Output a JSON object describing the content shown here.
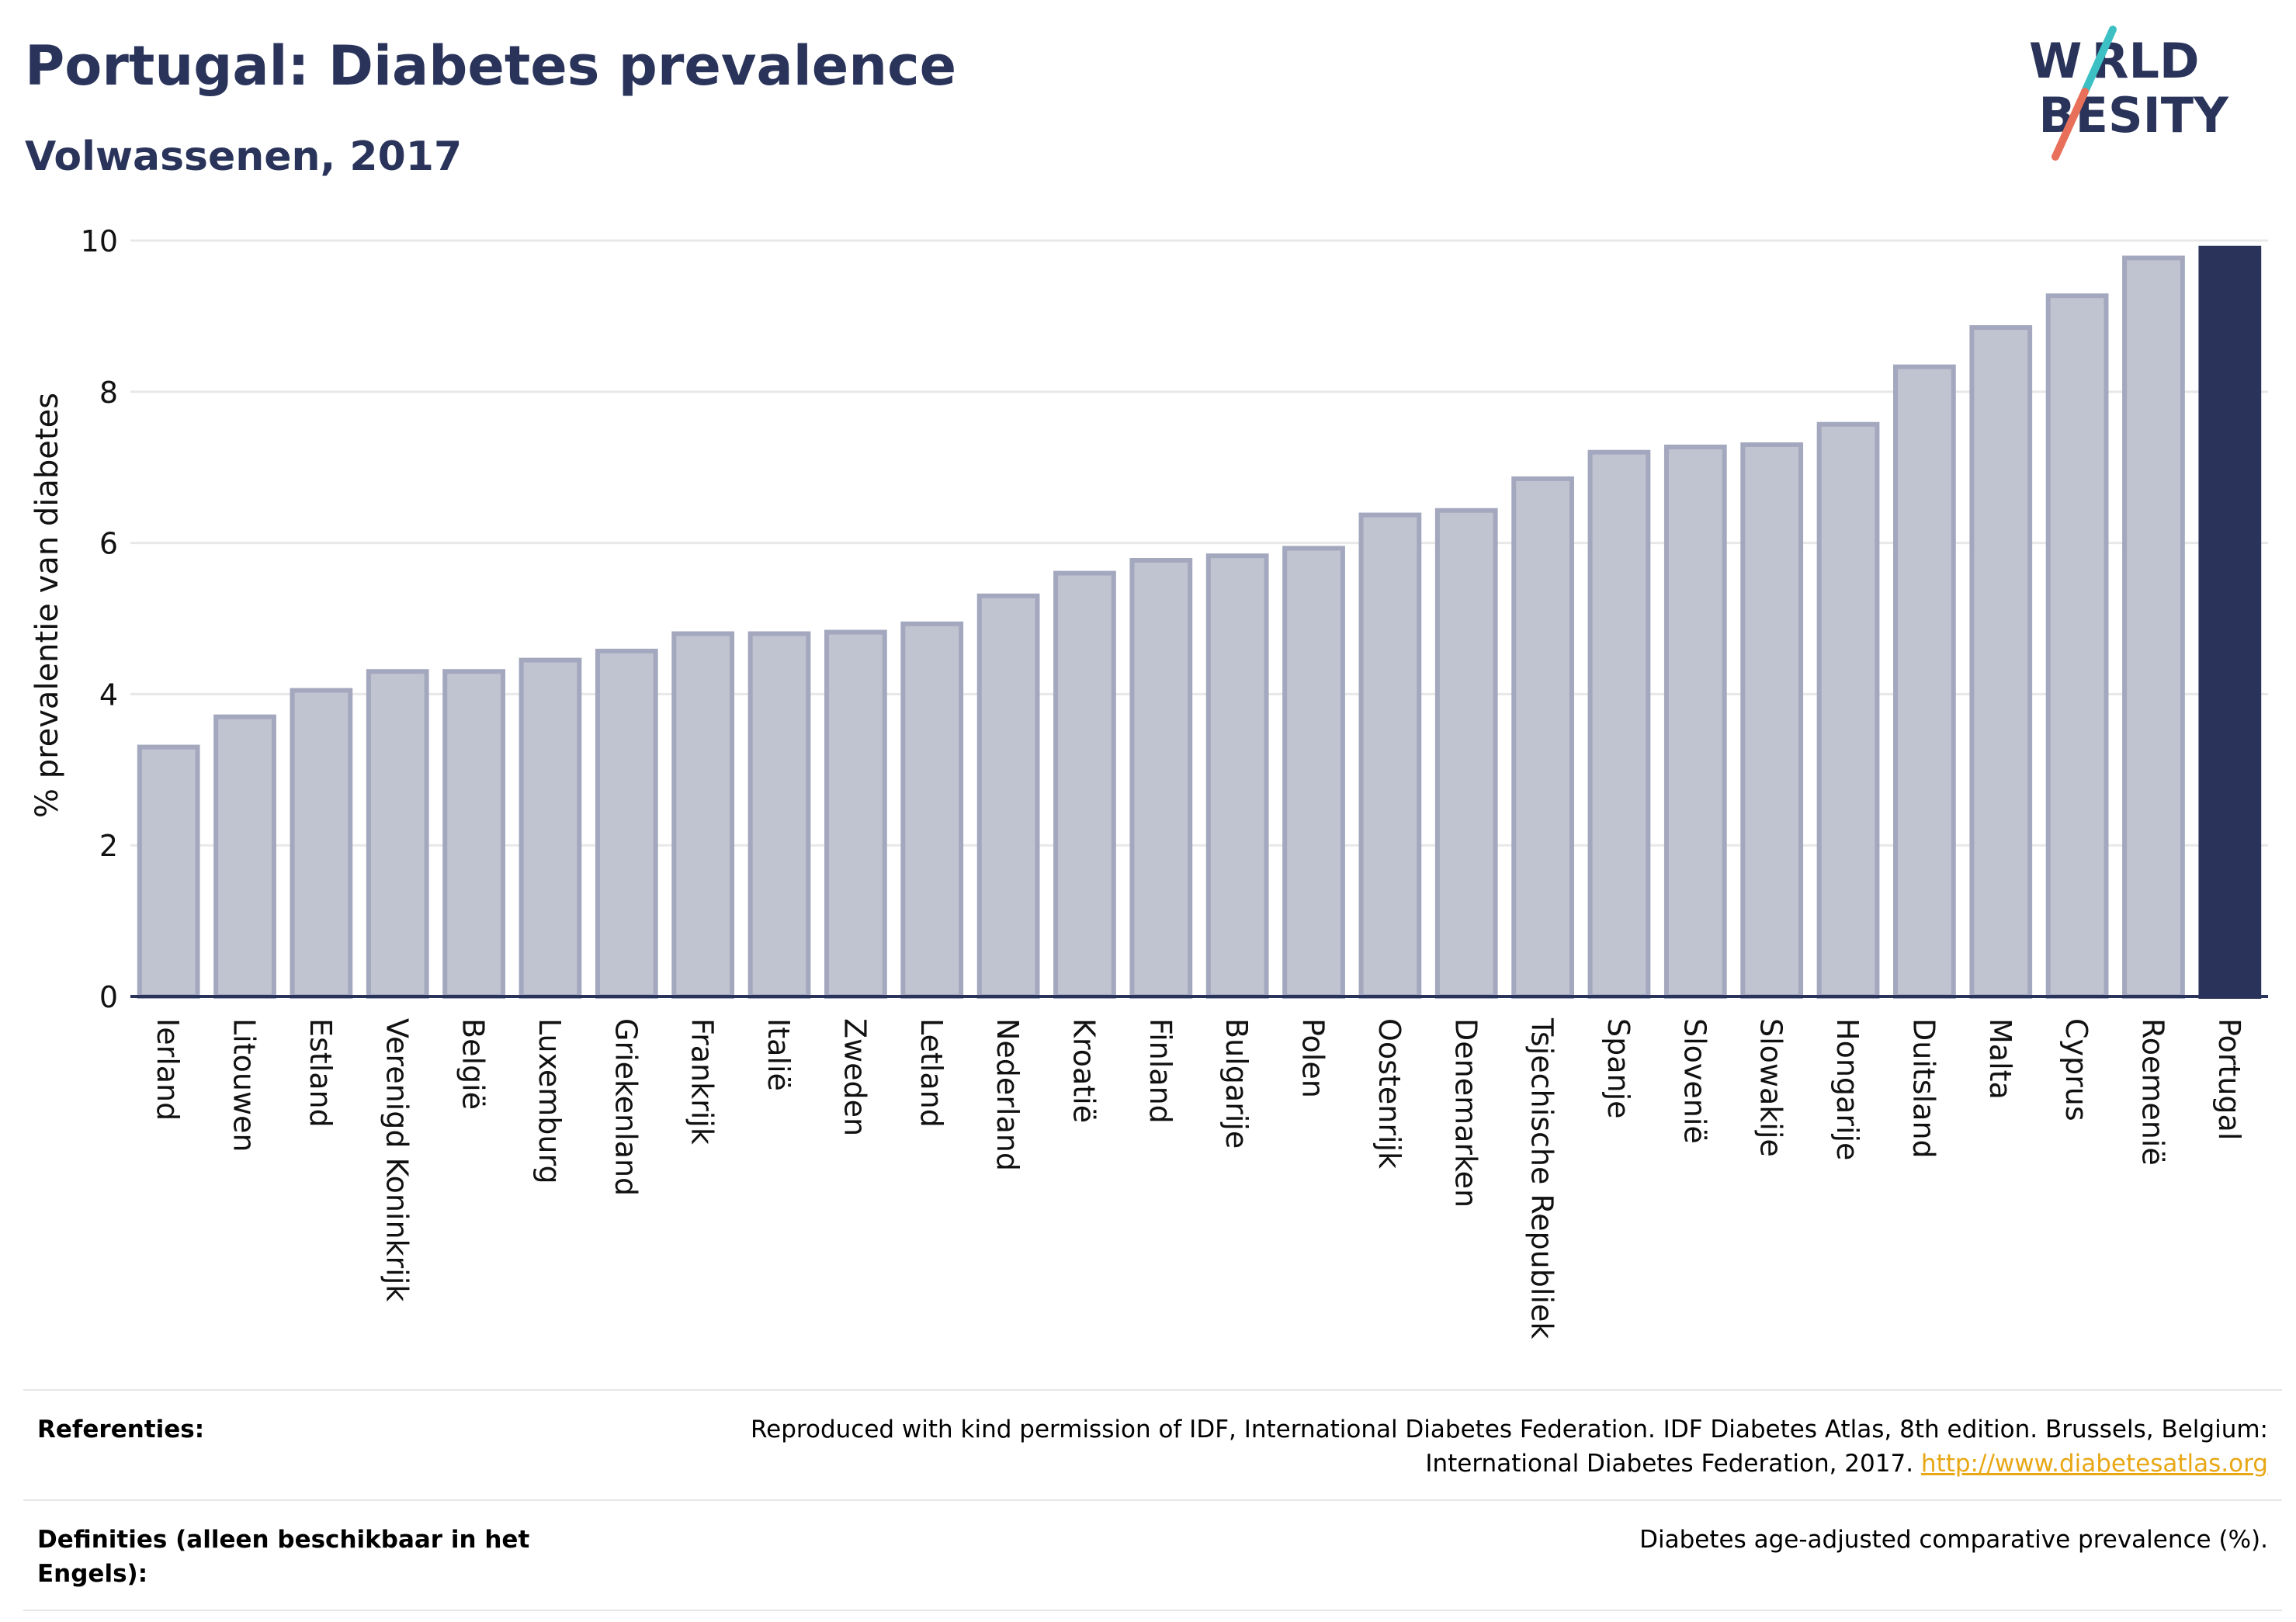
{
  "header": {
    "title": "Portugal: Diabetes prevalence",
    "subtitle": "Volwassenen, 2017"
  },
  "logo": {
    "line1": "W RLD",
    "line2": " BESITY",
    "colors": {
      "navy": "#2a345b",
      "teal": "#3cc0c4",
      "coral": "#e8705a"
    }
  },
  "chart_data": {
    "type": "bar",
    "ylabel": "% prevalentie van diabetes",
    "ylim": [
      0,
      10
    ],
    "yticks": [
      0,
      2,
      4,
      6,
      8,
      10
    ],
    "grid": true,
    "categories": [
      "Ierland",
      "Litouwen",
      "Estland",
      "Verenigd Koninkrijk",
      "België",
      "Luxemburg",
      "Griekenland",
      "Frankrijk",
      "Italië",
      "Zweden",
      "Letland",
      "Nederland",
      "Kroatië",
      "Finland",
      "Bulgarije",
      "Polen",
      "Oostenrijk",
      "Denemarken",
      "Tsjechische Republiek",
      "Spanje",
      "Slovenië",
      "Slowakije",
      "Hongarije",
      "Duitsland",
      "Malta",
      "Cyprus",
      "Roemenië",
      "Portugal"
    ],
    "values": [
      3.3,
      3.7,
      4.05,
      4.3,
      4.3,
      4.45,
      4.57,
      4.8,
      4.8,
      4.82,
      4.93,
      5.3,
      5.6,
      5.77,
      5.83,
      5.93,
      6.37,
      6.43,
      6.85,
      7.2,
      7.27,
      7.3,
      7.57,
      8.33,
      8.85,
      9.27,
      9.77,
      9.9
    ],
    "highlight": "Portugal",
    "colors": {
      "bar_fill": "#c0c3d0",
      "bar_stroke": "#a3a8be",
      "highlight": "#2a345b",
      "grid": "#e8e8e8",
      "axis": "#2a345b"
    }
  },
  "footer": {
    "refs_label": "Referenties:",
    "refs_text": "Reproduced with kind permission of IDF, International Diabetes Federation. IDF Diabetes Atlas, 8th edition. Brussels, Belgium: International Diabetes Federation, 2017.",
    "refs_link": "http://www.diabetesatlas.org",
    "defs_label": "Definities (alleen beschikbaar in het Engels):",
    "defs_text": "Diabetes age-adjusted comparative prevalence (%)."
  }
}
